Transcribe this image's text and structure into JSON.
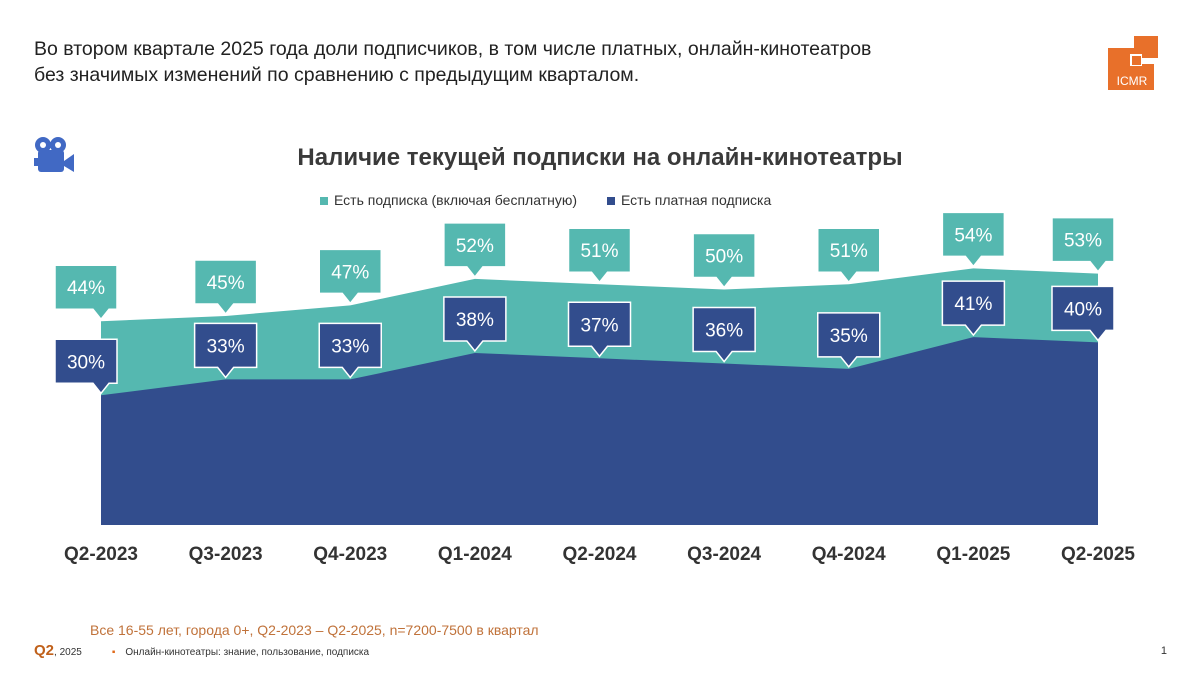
{
  "headline": [
    "Во втором квартале 2025 года доли подписчиков, в том числе платных, онлайн-кинотеатров",
    "без значимых изменений по сравнению с предыдущим кварталом."
  ],
  "logo_text": "ICMR",
  "icon": "video-camera-icon",
  "colors": {
    "any": "#55b8b0",
    "paid": "#324d8d",
    "accent": "#e8702a"
  },
  "chart_data": {
    "type": "area",
    "title": "Наличие текущей подписки на онлайн-кинотеатры",
    "categories": [
      "Q2-2023",
      "Q3-2023",
      "Q4-2023",
      "Q1-2024",
      "Q2-2024",
      "Q3-2024",
      "Q4-2024",
      "Q1-2025",
      "Q2-2025"
    ],
    "series": [
      {
        "name": "Есть подписка (включая бесплатную)",
        "values": [
          44,
          45,
          47,
          52,
          51,
          50,
          51,
          54,
          53
        ],
        "labels": [
          "44%",
          "45%",
          "47%",
          "52%",
          "51%",
          "50%",
          "51%",
          "54%",
          "53%"
        ]
      },
      {
        "name": "Есть платная  подписка",
        "values": [
          30,
          33,
          33,
          38,
          37,
          36,
          35,
          41,
          40
        ],
        "labels": [
          "30%",
          "33%",
          "33%",
          "38%",
          "37%",
          "36%",
          "35%",
          "41%",
          "40%"
        ]
      }
    ],
    "legend": "top",
    "grid": false
  },
  "footer": {
    "note": "Все 16-55 лет,  города 0+, Q2-2023 – Q2-2025, n=7200-7500 в квартал",
    "period_bold": "Q2",
    "period_year": ", 2025",
    "bullet": "▪",
    "section": "Онлайн-кинотеатры: знание, пользование, подписка",
    "page": "1"
  }
}
